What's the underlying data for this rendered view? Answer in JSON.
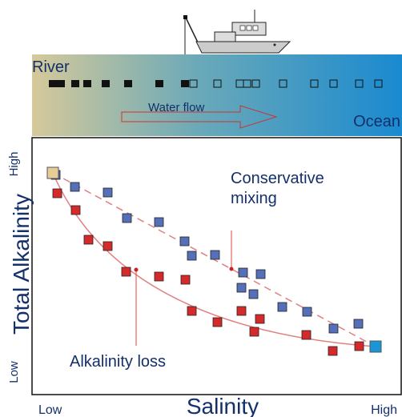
{
  "band": {
    "river": "River",
    "flow": "Water flow",
    "ocean": "Ocean"
  },
  "plot": {
    "y_high": "High",
    "y_title": "Total Alkalinity",
    "y_low": "Low",
    "x_low": "Low",
    "x_title": "Salinity",
    "x_high": "High",
    "conservative": [
      "Conservative",
      "mixing"
    ],
    "loss": "Alkalinity loss"
  }
}
